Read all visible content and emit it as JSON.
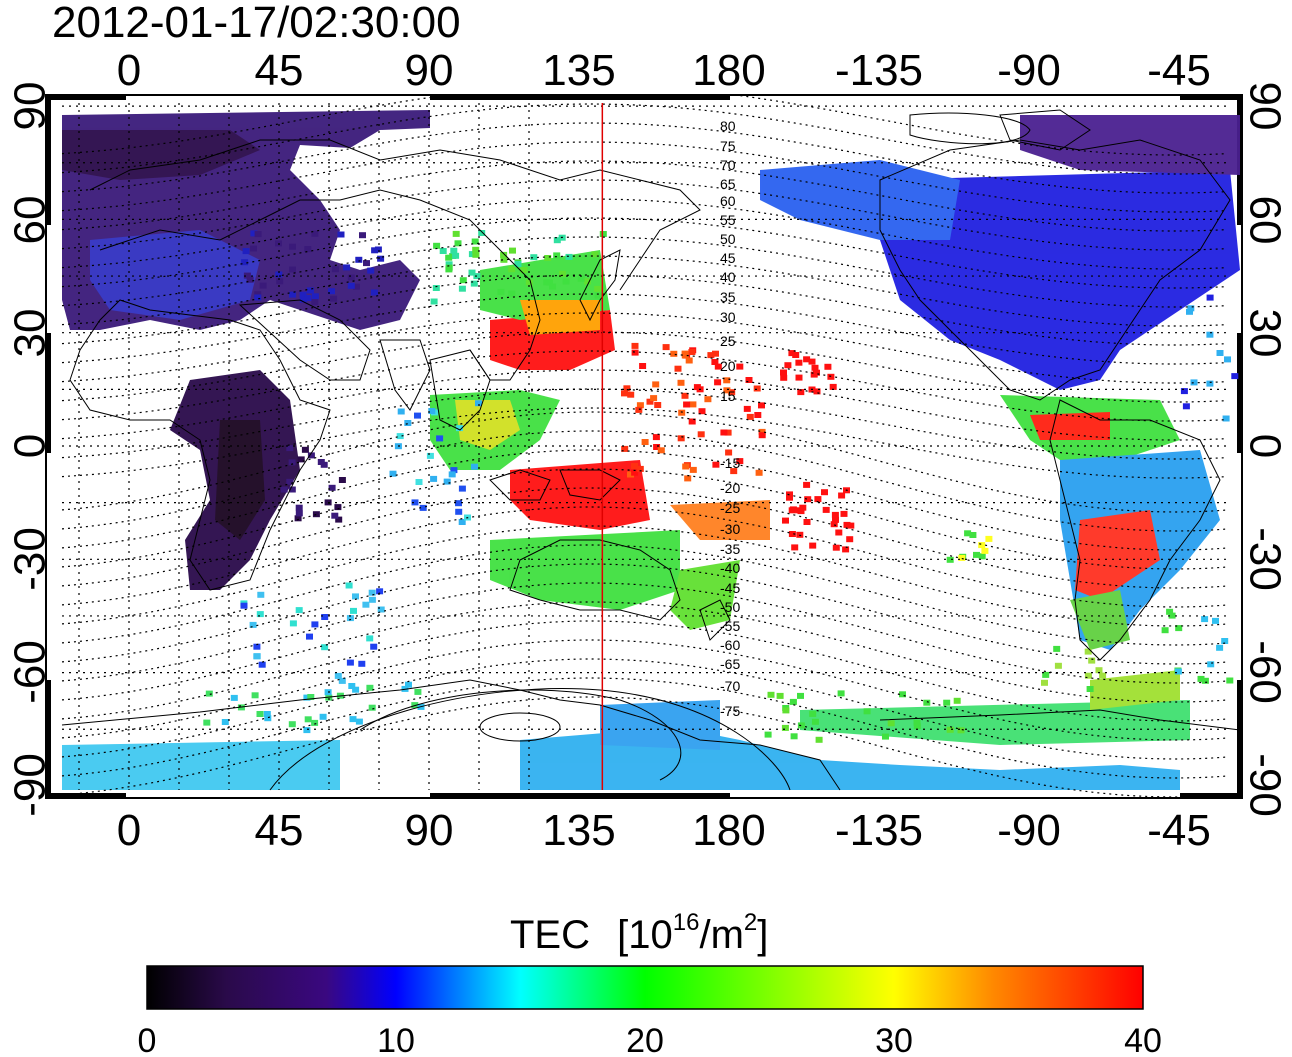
{
  "title": "2012-01-17/02:30:00",
  "lon_tick_labels": [
    "0",
    "45",
    "90",
    "135",
    "180",
    "-135",
    "-90",
    "-45"
  ],
  "lat_tick_labels": [
    "90",
    "60",
    "30",
    "0",
    "-30",
    "-60",
    "-90"
  ],
  "maglat_contour_labels": [
    "80",
    "75",
    "70",
    "65",
    "60",
    "55",
    "50",
    "45",
    "40",
    "35",
    "30",
    "25",
    "20",
    "15",
    "-15",
    "-20",
    "-25",
    "-30",
    "-35",
    "-40",
    "-45",
    "-50",
    "-55",
    "-60",
    "-65",
    "-70",
    "-75"
  ],
  "meridian_marker_lon": 142,
  "colorbar": {
    "title": "TEC",
    "unit_base": "10",
    "unit_exp": "16",
    "unit_rest": "/m",
    "unit_sq": "2",
    "tick_labels": [
      "0",
      "10",
      "20",
      "30",
      "40"
    ],
    "range": [
      0,
      40
    ],
    "colors": [
      "#000000",
      "#2a0a4a",
      "#3a0880",
      "#0000ff",
      "#00ffff",
      "#00ff00",
      "#ffff00",
      "#ff8800",
      "#ff0000"
    ]
  }
}
